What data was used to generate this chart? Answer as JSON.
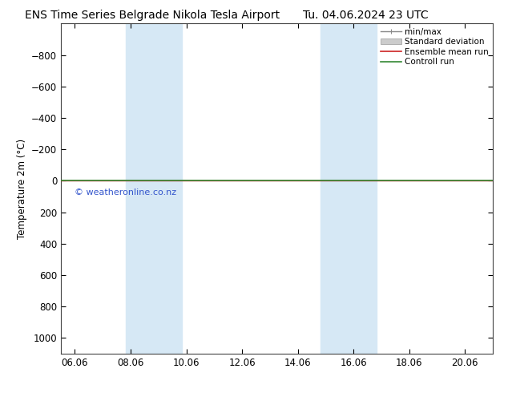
{
  "title_left": "ENS Time Series Belgrade Nikola Tesla Airport",
  "title_right": "Tu. 04.06.2024 23 UTC",
  "ylabel": "Temperature 2m (°C)",
  "ylim_bottom": -1000,
  "ylim_top": 1100,
  "yticks": [
    -800,
    -600,
    -400,
    -200,
    0,
    200,
    400,
    600,
    800,
    1000
  ],
  "xlim_left": 5.5,
  "xlim_right": 21.0,
  "x_tick_positions": [
    6,
    8,
    10,
    12,
    14,
    16,
    18,
    20
  ],
  "x_tick_labels": [
    "06.06",
    "08.06",
    "10.06",
    "12.06",
    "14.06",
    "16.06",
    "18.06",
    "20.06"
  ],
  "shaded_bands": [
    {
      "xmin": 7.83,
      "xmax": 9.83
    },
    {
      "xmin": 14.83,
      "xmax": 16.83
    }
  ],
  "control_run_y": 0,
  "ensemble_mean_y": 0,
  "watermark": "© weatheronline.co.nz",
  "watermark_color": "#3355cc",
  "bg_color": "#ffffff",
  "plot_bg_color": "#ffffff",
  "shaded_color": "#d6e8f5",
  "border_color": "#444444",
  "control_run_color": "#338833",
  "ensemble_mean_color": "#cc2222",
  "std_dev_color": "#cccccc",
  "minmax_color": "#888888",
  "legend_entries": [
    "min/max",
    "Standard deviation",
    "Ensemble mean run",
    "Controll run"
  ],
  "title_fontsize": 10,
  "axis_label_fontsize": 8.5,
  "tick_fontsize": 8.5,
  "legend_fontsize": 7.5
}
